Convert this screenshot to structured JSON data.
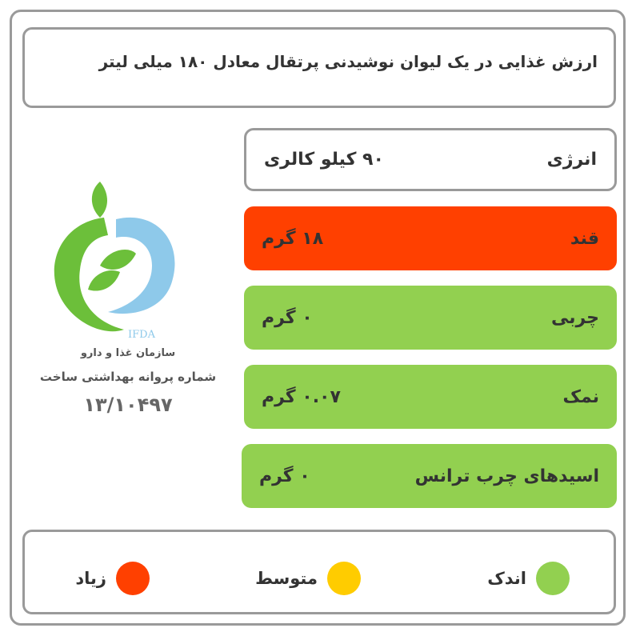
{
  "title": "ارزش غذایی در یک لیوان نوشیدنی پرتقال معادل ۱۸۰ میلی لیتر",
  "rows": [
    {
      "name": "انرژی",
      "value": "۹۰  کیلو کالری",
      "color": "#ffffff"
    },
    {
      "name": "قند",
      "value": "۱۸  گرم",
      "color": "#ff4000"
    },
    {
      "name": "چربی",
      "value": "۰  گرم",
      "color": "#92d050"
    },
    {
      "name": "نمک",
      "value": "۰.۰۷  گرم",
      "color": "#92d050"
    },
    {
      "name": "اسیدهای چرب ترانس",
      "value": "۰  گرم",
      "color": "#92d050"
    }
  ],
  "logo": {
    "text": "IFDA",
    "org": "سازمان غذا و دارو",
    "license_label": "شماره پروانه بهداشتی ساخت",
    "license_number": "۱۳/۱۰۴۹۷"
  },
  "legend": [
    {
      "label": "اندک",
      "color": "#92d050"
    },
    {
      "label": "متوسط",
      "color": "#ffcc00"
    },
    {
      "label": "زیاد",
      "color": "#ff4000"
    }
  ]
}
